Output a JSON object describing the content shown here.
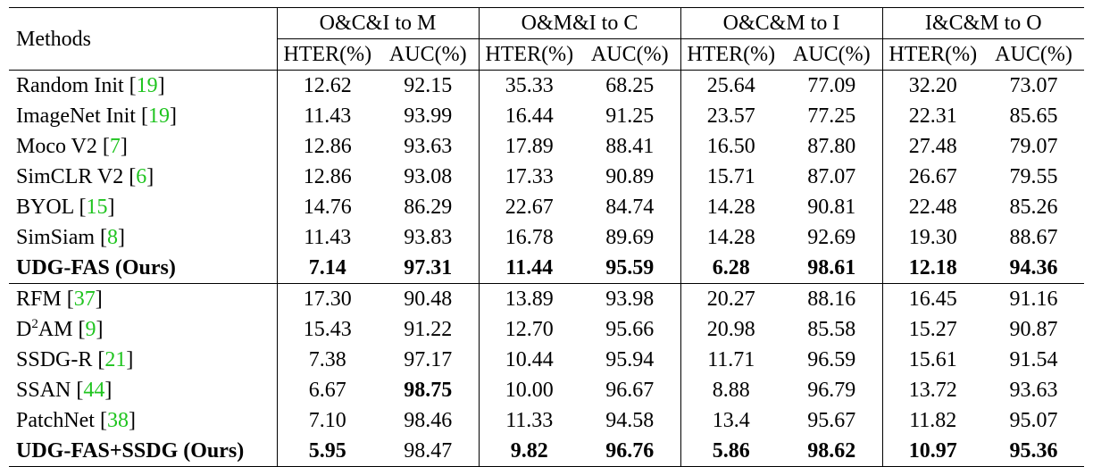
{
  "header": {
    "methods_label": "Methods",
    "groups": [
      "O&C&I to M",
      "O&M&I to C",
      "O&C&M to I",
      "I&C&M to O"
    ],
    "metric_labels": [
      "HTER(%)",
      "AUC(%)"
    ]
  },
  "group1": [
    {
      "name": "Random Init [",
      "ref": "19",
      "close": "]",
      "values": [
        "12.62",
        "92.15",
        "35.33",
        "68.25",
        "25.64",
        "77.09",
        "32.20",
        "73.07"
      ]
    },
    {
      "name": "ImageNet Init [",
      "ref": "19",
      "close": "]",
      "values": [
        "11.43",
        "93.99",
        "16.44",
        "91.25",
        "23.57",
        "77.25",
        "22.31",
        "85.65"
      ]
    },
    {
      "name": "Moco V2 [",
      "ref": "7",
      "close": "]",
      "values": [
        "12.86",
        "93.63",
        "17.89",
        "88.41",
        "16.50",
        "87.80",
        "27.48",
        "79.07"
      ]
    },
    {
      "name": "SimCLR V2 [",
      "ref": "6",
      "close": "]",
      "values": [
        "12.86",
        "93.08",
        "17.33",
        "90.89",
        "15.71",
        "87.07",
        "26.67",
        "79.55"
      ]
    },
    {
      "name": "BYOL [",
      "ref": "15",
      "close": "]",
      "values": [
        "14.76",
        "86.29",
        "22.67",
        "84.74",
        "14.28",
        "90.81",
        "22.48",
        "85.26"
      ]
    },
    {
      "name": "SimSiam [",
      "ref": "8",
      "close": "]",
      "values": [
        "11.43",
        "93.83",
        "16.78",
        "89.69",
        "14.28",
        "92.69",
        "19.30",
        "88.67"
      ]
    },
    {
      "name": "UDG-FAS (Ours)",
      "ref": "",
      "close": "",
      "values": [
        "7.14",
        "97.31",
        "11.44",
        "95.59",
        "6.28",
        "98.61",
        "12.18",
        "94.36"
      ]
    }
  ],
  "group2": [
    {
      "name": "RFM [",
      "ref": "37",
      "close": "]",
      "values": [
        "17.30",
        "90.48",
        "13.89",
        "93.98",
        "20.27",
        "88.16",
        "16.45",
        "91.16"
      ]
    },
    {
      "name_base": "D",
      "name_sup": "2",
      "name_rest": "AM [",
      "ref": "9",
      "close": "]",
      "values": [
        "15.43",
        "91.22",
        "12.70",
        "95.66",
        "20.98",
        "85.58",
        "15.27",
        "90.87"
      ]
    },
    {
      "name": "SSDG-R [",
      "ref": "21",
      "close": "]",
      "values": [
        "7.38",
        "97.17",
        "10.44",
        "95.94",
        "11.71",
        "96.59",
        "15.61",
        "91.54"
      ]
    },
    {
      "name": "SSAN [",
      "ref": "44",
      "close": "]",
      "values": [
        "6.67",
        "98.75",
        "10.00",
        "96.67",
        "8.88",
        "96.79",
        "13.72",
        "93.63"
      ]
    },
    {
      "name": "PatchNet [",
      "ref": "38",
      "close": "]",
      "values": [
        "7.10",
        "98.46",
        "11.33",
        "94.58",
        "13.4",
        "95.67",
        "11.82",
        "95.07"
      ]
    },
    {
      "name": "UDG-FAS+SSDG (Ours)",
      "ref": "",
      "close": "",
      "values": [
        "5.95",
        "98.47",
        "9.82",
        "96.76",
        "5.86",
        "98.62",
        "10.97",
        "95.36"
      ]
    }
  ],
  "colors": {
    "reference_link": "#1fc41f",
    "text": "#000000"
  }
}
